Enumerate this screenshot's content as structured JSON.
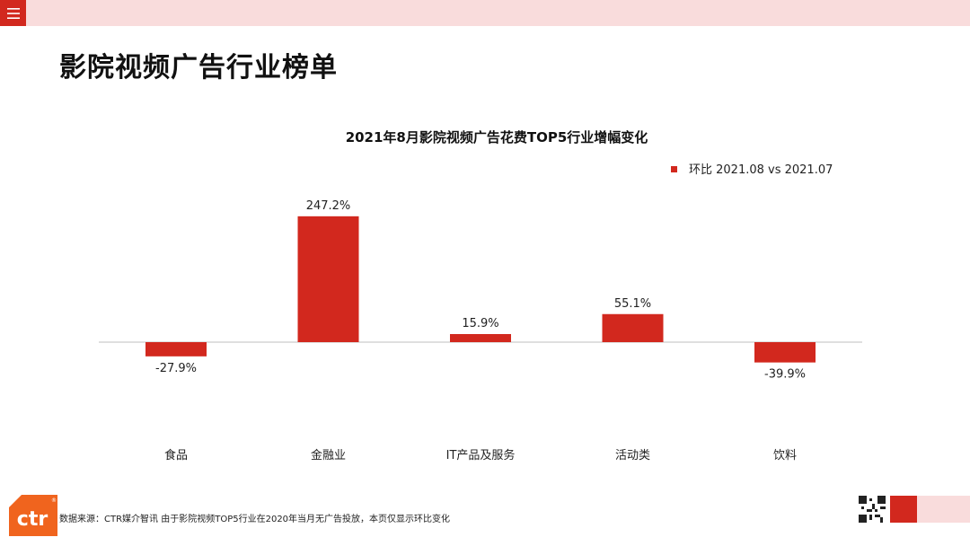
{
  "page": {
    "title": "影院视频广告行业榜单",
    "menu_icon": "menu-icon",
    "logo_text": "ctr",
    "logo_mark": "®",
    "footnote": "数据来源：CTR媒介智讯    由于影院视频TOP5行业在2020年当月无广告投放，本页仅显示环比变化"
  },
  "colors": {
    "accent": "#d2281e",
    "pink": "#f9dcdc",
    "logo_orange": "#f0641e"
  },
  "chart_data": {
    "type": "bar",
    "title": "2021年8月影院视频广告花费TOP5行业增幅变化",
    "categories": [
      "食品",
      "金融业",
      "IT产品及服务",
      "活动类",
      "饮料"
    ],
    "series": [
      {
        "name": "环比 2021.08 vs 2021.07",
        "values": [
          -27.9,
          247.2,
          15.9,
          55.1,
          -39.9
        ],
        "labels": [
          "-27.9%",
          "247.2%",
          "15.9%",
          "55.1%",
          "-39.9%"
        ]
      }
    ],
    "xlabel": "",
    "ylabel": "",
    "ylim": [
      -50,
      247.2
    ],
    "grid": false,
    "legend_position": "top-right",
    "bar_color": "#d2281e"
  }
}
